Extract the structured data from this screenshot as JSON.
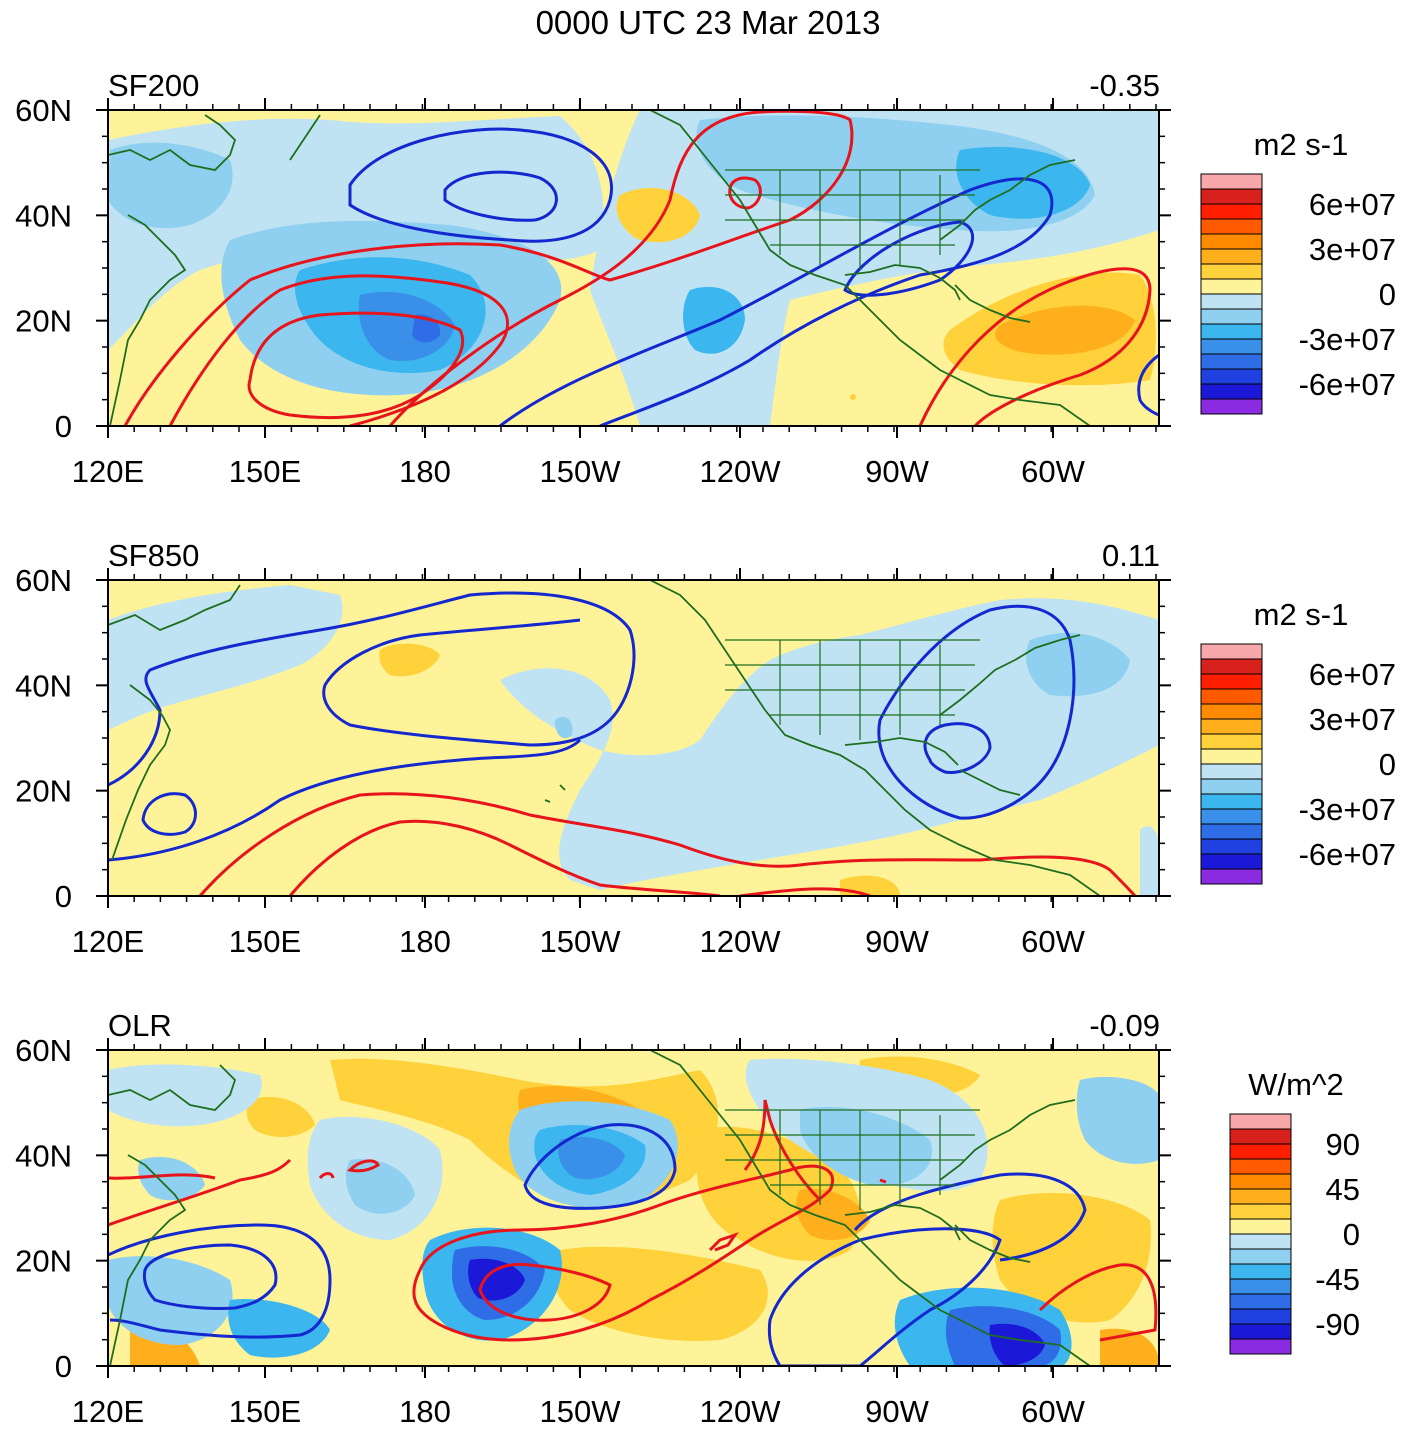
{
  "figure": {
    "title": "0000 UTC 23 Mar 2013",
    "x_ticks": [
      "120E",
      "150E",
      "180",
      "150W",
      "120W",
      "90W",
      "60W"
    ],
    "y_ticks": [
      "60N",
      "40N",
      "20N",
      "0"
    ]
  },
  "colors": {
    "positive": [
      "#fff39a",
      "#ffd23c",
      "#ffae1c",
      "#ff8a00",
      "#ff5a00",
      "#ff1e00",
      "#d8201c",
      "#f8a8aa"
    ],
    "negative": [
      "#bfe3f2",
      "#8fd0f0",
      "#3cb6ef",
      "#3a8fe8",
      "#2f6de6",
      "#2140e0",
      "#1c18d8",
      "#8a2be2"
    ],
    "contour_positive": "#e8141c",
    "contour_negative": "#1428d0",
    "coastline": "#1f6e1f"
  },
  "panels": [
    {
      "id": "sf200",
      "label": "SF200",
      "value": "-0.35",
      "units": "m2 s-1",
      "colorbar_ticks": [
        "6e+07",
        "3e+07",
        "0",
        "-3e+07",
        "-6e+07"
      ]
    },
    {
      "id": "sf850",
      "label": "SF850",
      "value": "0.11",
      "units": "m2 s-1",
      "colorbar_ticks": [
        "6e+07",
        "3e+07",
        "0",
        "-3e+07",
        "-6e+07"
      ]
    },
    {
      "id": "olr",
      "label": "OLR",
      "value": "-0.09",
      "units": "W/m^2",
      "colorbar_ticks": [
        "90",
        "45",
        "0",
        "-45",
        "-90"
      ]
    }
  ]
}
